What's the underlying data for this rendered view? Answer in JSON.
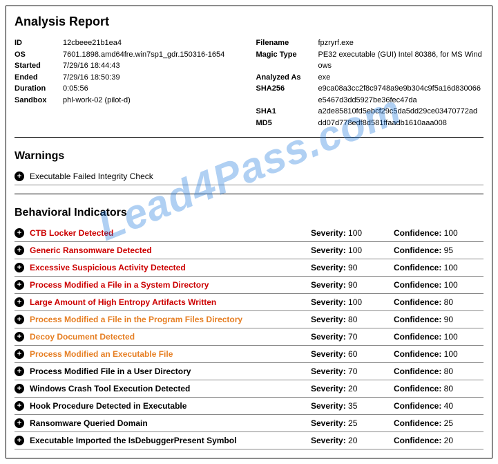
{
  "watermark": "Lead4Pass.com",
  "title": "Analysis Report",
  "meta_left": [
    {
      "label": "ID",
      "value": "12cbeee21b1ea4"
    },
    {
      "label": "OS",
      "value": "7601.1898.amd64fre.win7sp1_gdr.150316-1654"
    },
    {
      "label": "Started",
      "value": "7/29/16 18:44:43"
    },
    {
      "label": "Ended",
      "value": "7/29/16 18:50:39"
    },
    {
      "label": "Duration",
      "value": "0:05:56"
    },
    {
      "label": "Sandbox",
      "value": "phl-work-02 (pilot-d)"
    }
  ],
  "meta_right": [
    {
      "label": "Filename",
      "value": "fpzryrf.exe"
    },
    {
      "label": "Magic Type",
      "value": "PE32 executable (GUI) Intel 80386, for MS Windows"
    },
    {
      "label": "Analyzed As",
      "value": "exe"
    },
    {
      "label": "SHA256",
      "value": "e9ca08a3cc2f8c9748a9e9b304c9f5a16d830066e5467d3dd5927be36fec47da"
    },
    {
      "label": "SHA1",
      "value": "a2de85810fd5ebcf29c5da5dd29ce03470772ad"
    },
    {
      "label": "MD5",
      "value": "dd07d778edf8d581ffaadb1610aaa008"
    }
  ],
  "warnings_header": "Warnings",
  "warnings": [
    {
      "text": "Executable Failed Integrity Check"
    }
  ],
  "bi_header": "Behavioral Indicators",
  "sev_label": "Severity:",
  "conf_label": "Confidence:",
  "indicators": [
    {
      "name": "CTB Locker Detected",
      "severity": "100",
      "confidence": "100",
      "color": "c-red"
    },
    {
      "name": "Generic Ransomware Detected",
      "severity": "100",
      "confidence": "95",
      "color": "c-red"
    },
    {
      "name": "Excessive Suspicious Activity Detected",
      "severity": "90",
      "confidence": "100",
      "color": "c-red"
    },
    {
      "name": "Process Modified a File in a System Directory",
      "severity": "90",
      "confidence": "100",
      "color": "c-red"
    },
    {
      "name": "Large Amount of High Entropy Artifacts Written",
      "severity": "100",
      "confidence": "80",
      "color": "c-red"
    },
    {
      "name": "Process Modified a File in the Program Files Directory",
      "severity": "80",
      "confidence": "90",
      "color": "c-orange"
    },
    {
      "name": "Decoy Document Detected",
      "severity": "70",
      "confidence": "100",
      "color": "c-orange"
    },
    {
      "name": "Process Modified an Executable File",
      "severity": "60",
      "confidence": "100",
      "color": "c-orange"
    },
    {
      "name": "Process Modified File in a User Directory",
      "severity": "70",
      "confidence": "80",
      "color": "c-black"
    },
    {
      "name": "Windows Crash Tool Execution Detected",
      "severity": "20",
      "confidence": "80",
      "color": "c-black"
    },
    {
      "name": "Hook Procedure Detected in Executable",
      "severity": "35",
      "confidence": "40",
      "color": "c-black"
    },
    {
      "name": "Ransomware Queried Domain",
      "severity": "25",
      "confidence": "25",
      "color": "c-black"
    },
    {
      "name": "Executable Imported the IsDebuggerPresent Symbol",
      "severity": "20",
      "confidence": "20",
      "color": "c-black"
    }
  ]
}
